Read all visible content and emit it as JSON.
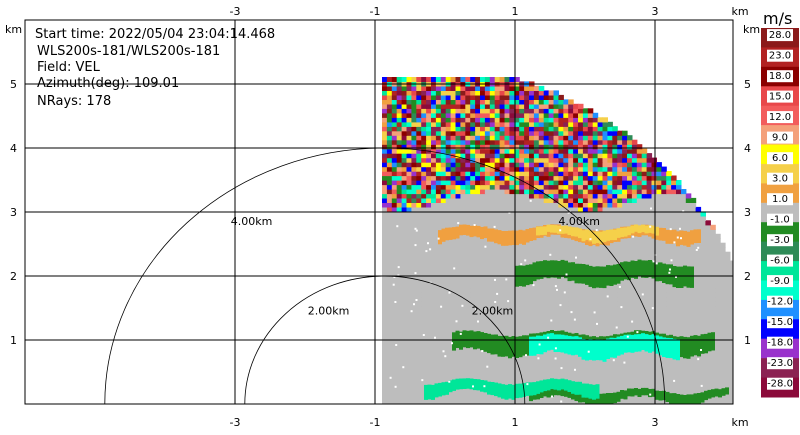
{
  "info": {
    "start_time": "Start time: 2022/05/04 23:04:14.468",
    "site": "WLS200s-181/WLS200s-181",
    "field": "Field: VEL",
    "azimuth": "Azimuth(deg): 109.01",
    "nrays": "NRays: 178"
  },
  "axes": {
    "x_unit": "km",
    "y_unit": "km",
    "x_ticks": [
      "-3",
      "-1",
      "1",
      "3"
    ],
    "y_ticks": [
      "1",
      "2",
      "3",
      "4",
      "5"
    ]
  },
  "range_rings": [
    {
      "label": "4.00km",
      "radius_km": 4
    },
    {
      "label": "2.00km",
      "radius_km": 2
    }
  ],
  "colorbar": {
    "unit": "m/s",
    "labels": [
      "28.0",
      "23.0",
      "18.0",
      "15.0",
      "12.0",
      "9.0",
      "6.0",
      "3.0",
      "1.0",
      "-1.0",
      "-3.0",
      "-6.0",
      "-9.0",
      "-12.0",
      "-15.0",
      "-18.0",
      "-23.0",
      "-28.0"
    ],
    "colors": [
      "#8b1a1a",
      "#b22222",
      "#8b0000",
      "#e8474a",
      "#f25c5c",
      "#f4a07a",
      "#ffff00",
      "#f5d04a",
      "#f0a040",
      "#bdbdbd",
      "#228b22",
      "#2e8b57",
      "#00e699",
      "#00ffcc",
      "#1e90ff",
      "#0000ff",
      "#9932cc",
      "#8b2252",
      "#8b0a3a"
    ]
  },
  "chart_data": {
    "type": "heatmap",
    "title": "",
    "xlabel": "km",
    "ylabel": "km",
    "xlim": [
      -4.2,
      4.2
    ],
    "ylim": [
      0,
      5.6
    ],
    "field": "VEL",
    "units": "m/s",
    "scan_coverage": {
      "theta_deg": [
        0,
        90
      ],
      "range_km": [
        0,
        5.1
      ]
    },
    "bands": [
      {
        "y_km": [
          0.05,
          0.2
        ],
        "x_km": [
          1.2,
          4.0
        ],
        "value": -3.0,
        "color": "#228b22"
      },
      {
        "y_km": [
          0.15,
          0.35
        ],
        "x_km": [
          -0.3,
          2.2
        ],
        "value": -6.0,
        "color": "#00e699"
      },
      {
        "y_km": [
          0.8,
          1.1
        ],
        "x_km": [
          0.1,
          3.8
        ],
        "value": -3.0,
        "color": "#228b22"
      },
      {
        "y_km": [
          0.75,
          1.05
        ],
        "x_km": [
          1.2,
          3.3
        ],
        "value": -9.0,
        "color": "#00ffcc"
      },
      {
        "y_km": [
          1.9,
          2.2
        ],
        "x_km": [
          1.0,
          3.5
        ],
        "value": -3.0,
        "color": "#228b22"
      },
      {
        "y_km": [
          2.55,
          2.75
        ],
        "x_km": [
          -0.1,
          3.6
        ],
        "value": 1.0,
        "color": "#f0a040"
      },
      {
        "y_km": [
          2.6,
          2.75
        ],
        "x_km": [
          1.3,
          3.0
        ],
        "value": 3.0,
        "color": "#f5d04a"
      },
      {
        "y_km": [
          3.2,
          5.0
        ],
        "x_km": [
          -0.1,
          4.0
        ],
        "value": "noise",
        "color": "mixed"
      }
    ]
  }
}
